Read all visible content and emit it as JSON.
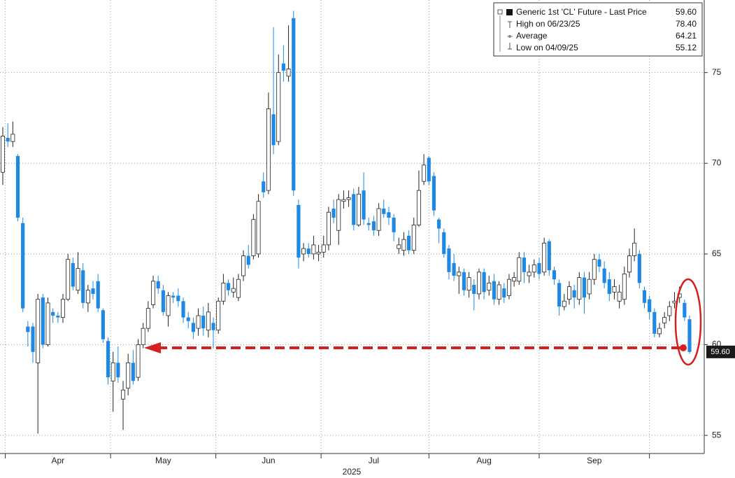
{
  "chart_data": {
    "type": "candlestick",
    "xlabel": "2025",
    "up_color": "#ffffff",
    "down_color": "#1e88e5",
    "ylim": [
      54.0,
      79.0
    ],
    "yticks": [
      55,
      60,
      65,
      70,
      75
    ],
    "grid": true,
    "legend_position": "upper right",
    "legend": [
      {
        "label": "Generic 1st 'CL' Future - Last Price",
        "value": "59.60"
      },
      {
        "label": "High on 06/23/25",
        "value": "78.40"
      },
      {
        "label": "Average",
        "value": "64.21"
      },
      {
        "label": "Low on 04/09/25",
        "value": "55.12"
      }
    ],
    "categories": [
      null,
      null,
      null,
      null,
      null,
      null,
      null,
      null,
      null,
      null,
      null,
      "Apr",
      null,
      null,
      null,
      null,
      null,
      null,
      null,
      null,
      null,
      null,
      null,
      null,
      null,
      null,
      null,
      null,
      null,
      null,
      null,
      null,
      "May",
      null,
      null,
      null,
      null,
      null,
      null,
      null,
      null,
      null,
      null,
      null,
      null,
      null,
      null,
      null,
      null,
      null,
      null,
      null,
      null,
      "Jun",
      null,
      null,
      null,
      null,
      null,
      null,
      null,
      null,
      null,
      null,
      null,
      null,
      null,
      null,
      null,
      null,
      null,
      null,
      null,
      null,
      "Jul",
      null,
      null,
      null,
      null,
      null,
      null,
      null,
      null,
      null,
      null,
      null,
      null,
      null,
      null,
      null,
      null,
      null,
      null,
      null,
      null,
      null,
      "Aug",
      null,
      null,
      null,
      null,
      null,
      null,
      null,
      null,
      null,
      null,
      null,
      null,
      null,
      null,
      null,
      null,
      null,
      null,
      null,
      null,
      null,
      "Sep",
      null,
      null,
      null,
      null,
      null,
      null,
      null,
      null,
      null,
      null,
      null,
      null,
      null,
      null,
      null,
      null,
      null,
      null,
      null
    ],
    "open": [
      69.5,
      71.4,
      71.2,
      70.4,
      66.7,
      61.0,
      61.0,
      59.0,
      62.6,
      60.0,
      61.8,
      61.6,
      61.5,
      62.5,
      64.5,
      63.0,
      64.1,
      62.3,
      63.1,
      63.5,
      61.9,
      60.2,
      58.0,
      59.0,
      57.0,
      57.6,
      59.0,
      58.2,
      60.0,
      60.9,
      62.2,
      63.5,
      63.0,
      61.6,
      62.7,
      62.7,
      62.4,
      61.5,
      61.2,
      60.9,
      61.6,
      60.8,
      61.2,
      60.8,
      62.4,
      63.4,
      62.9,
      62.6,
      63.8,
      64.9,
      64.9,
      65.0,
      69.0,
      68.5,
      72.7,
      71.2,
      75.5,
      74.8,
      78.0,
      67.7,
      65.0,
      65.3,
      65.0,
      65.0,
      65.1,
      65.5,
      67.5,
      66.3,
      67.9,
      68.0,
      68.3,
      66.6,
      68.5,
      66.7,
      66.8,
      66.3,
      67.5,
      67.3,
      67.0,
      65.3,
      65.2,
      66.0,
      65.2,
      66.6,
      69.0,
      70.3,
      69.3,
      66.9,
      66.2,
      65.3,
      64.5,
      63.8,
      64.0,
      63.0,
      63.3,
      62.8,
      64.0,
      63.0,
      63.5,
      62.5,
      63.1,
      62.7,
      63.5,
      63.5,
      64.8,
      63.8,
      64.0,
      64.5,
      64.0,
      65.7,
      64.1,
      63.4,
      62.1,
      62.5,
      63.0,
      62.5,
      63.7,
      62.8,
      63.6,
      64.7,
      64.2,
      63.6,
      62.9,
      62.4,
      62.5,
      64.0,
      64.9,
      65.0,
      63.0,
      62.5,
      61.8,
      60.6,
      61.2,
      61.6,
      62.3,
      62.6,
      62.3,
      61.4
    ],
    "high": [
      72.0,
      72.2,
      72.3,
      70.5,
      67.0,
      61.3,
      61.2,
      62.8,
      62.8,
      62.6,
      62.0,
      61.8,
      62.8,
      65.0,
      64.8,
      65.1,
      64.5,
      63.3,
      63.5,
      63.9,
      62.0,
      60.4,
      59.6,
      59.9,
      58.0,
      59.5,
      59.7,
      60.3,
      61.2,
      62.4,
      63.8,
      63.8,
      63.3,
      62.9,
      62.9,
      63.1,
      62.6,
      61.8,
      61.5,
      62.0,
      62.1,
      62.3,
      61.5,
      62.6,
      63.9,
      63.6,
      63.7,
      63.9,
      65.2,
      65.5,
      67.2,
      68.3,
      69.5,
      73.9,
      77.5,
      76.0,
      76.5,
      77.6,
      78.4,
      68.0,
      65.6,
      65.6,
      66.0,
      65.5,
      66.0,
      67.6,
      68.0,
      68.3,
      68.5,
      68.5,
      68.6,
      68.7,
      69.5,
      67.0,
      67.1,
      67.8,
      68.0,
      67.6,
      67.2,
      65.9,
      66.2,
      66.3,
      67.0,
      69.6,
      70.5,
      70.4,
      69.5,
      67.0,
      66.4,
      65.5,
      65.0,
      64.3,
      64.2,
      64.0,
      63.6,
      64.2,
      64.2,
      63.8,
      63.9,
      63.5,
      63.4,
      63.9,
      64.0,
      65.1,
      65.1,
      64.4,
      64.7,
      64.8,
      65.9,
      65.8,
      64.3,
      63.6,
      62.8,
      63.5,
      63.3,
      64.0,
      64.0,
      64.0,
      65.0,
      65.0,
      64.6,
      64.0,
      63.6,
      63.3,
      64.3,
      65.3,
      66.4,
      65.2,
      63.2,
      62.7,
      62.0,
      61.2,
      61.8,
      62.4,
      62.9,
      63.2,
      62.5,
      61.6
    ],
    "low": [
      68.8,
      70.9,
      70.9,
      66.8,
      61.8,
      59.9,
      59.0,
      55.1,
      59.8,
      59.9,
      61.2,
      61.2,
      61.2,
      62.4,
      63.0,
      62.8,
      62.0,
      61.8,
      62.5,
      61.8,
      60.1,
      57.8,
      56.3,
      57.9,
      55.3,
      57.2,
      57.8,
      58.0,
      59.8,
      60.7,
      62.0,
      62.8,
      61.6,
      61.0,
      62.3,
      62.1,
      61.2,
      60.9,
      60.3,
      60.5,
      60.5,
      60.4,
      59.8,
      60.6,
      62.2,
      62.7,
      62.6,
      62.4,
      63.5,
      64.2,
      64.7,
      64.8,
      68.1,
      68.3,
      70.5,
      71.0,
      74.5,
      74.5,
      68.2,
      64.2,
      64.6,
      64.8,
      64.7,
      64.6,
      64.8,
      65.2,
      66.7,
      65.5,
      67.5,
      67.6,
      66.3,
      66.5,
      66.6,
      66.3,
      66.0,
      66.0,
      67.0,
      66.6,
      65.7,
      65.0,
      64.9,
      65.0,
      65.0,
      66.5,
      68.8,
      68.8,
      67.1,
      65.6,
      64.8,
      63.6,
      63.5,
      62.8,
      62.7,
      62.6,
      61.9,
      62.5,
      62.5,
      62.7,
      62.2,
      62.2,
      62.3,
      62.5,
      63.2,
      63.3,
      63.4,
      63.4,
      63.7,
      63.6,
      63.8,
      63.8,
      63.3,
      61.6,
      61.9,
      62.2,
      62.0,
      62.2,
      61.7,
      62.5,
      63.3,
      64.0,
      63.1,
      62.4,
      62.5,
      62.0,
      62.2,
      63.7,
      64.6,
      63.1,
      62.0,
      61.4,
      60.4,
      60.4,
      60.9,
      61.3,
      62.0,
      62.3,
      61.3,
      59.5
    ],
    "close": [
      71.5,
      71.2,
      71.6,
      67.0,
      62.0,
      60.7,
      59.6,
      62.5,
      60.0,
      62.3,
      61.6,
      61.5,
      62.5,
      64.7,
      63.2,
      64.2,
      62.3,
      63.0,
      62.8,
      62.0,
      60.3,
      58.2,
      59.0,
      58.2,
      57.5,
      59.0,
      58.0,
      60.0,
      60.9,
      62.0,
      63.5,
      63.1,
      61.8,
      62.7,
      62.6,
      62.4,
      61.5,
      61.3,
      60.7,
      61.6,
      60.9,
      61.8,
      60.8,
      62.4,
      63.4,
      63.0,
      63.1,
      63.6,
      64.9,
      64.4,
      66.9,
      67.9,
      68.4,
      73.0,
      71.0,
      75.0,
      75.1,
      75.2,
      68.5,
      64.8,
      65.3,
      65.0,
      65.5,
      65.1,
      65.5,
      67.3,
      67.0,
      68.0,
      68.0,
      68.1,
      66.6,
      68.3,
      66.9,
      66.6,
      66.3,
      67.5,
      67.2,
      67.0,
      66.2,
      65.5,
      65.8,
      65.2,
      66.6,
      68.5,
      69.9,
      69.0,
      67.4,
      66.4,
      65.0,
      64.0,
      63.8,
      64.0,
      63.0,
      63.7,
      62.8,
      64.0,
      62.9,
      63.4,
      62.5,
      63.3,
      62.6,
      63.6,
      63.7,
      64.8,
      64.0,
      64.0,
      64.4,
      63.9,
      65.6,
      64.1,
      63.6,
      62.1,
      62.4,
      63.2,
      62.6,
      63.7,
      62.6,
      63.6,
      64.7,
      64.3,
      63.4,
      62.8,
      63.2,
      62.9,
      63.9,
      64.9,
      65.6,
      63.4,
      62.3,
      61.8,
      60.6,
      60.9,
      61.5,
      62.1,
      62.4,
      62.8,
      61.5,
      59.6
    ]
  }
}
